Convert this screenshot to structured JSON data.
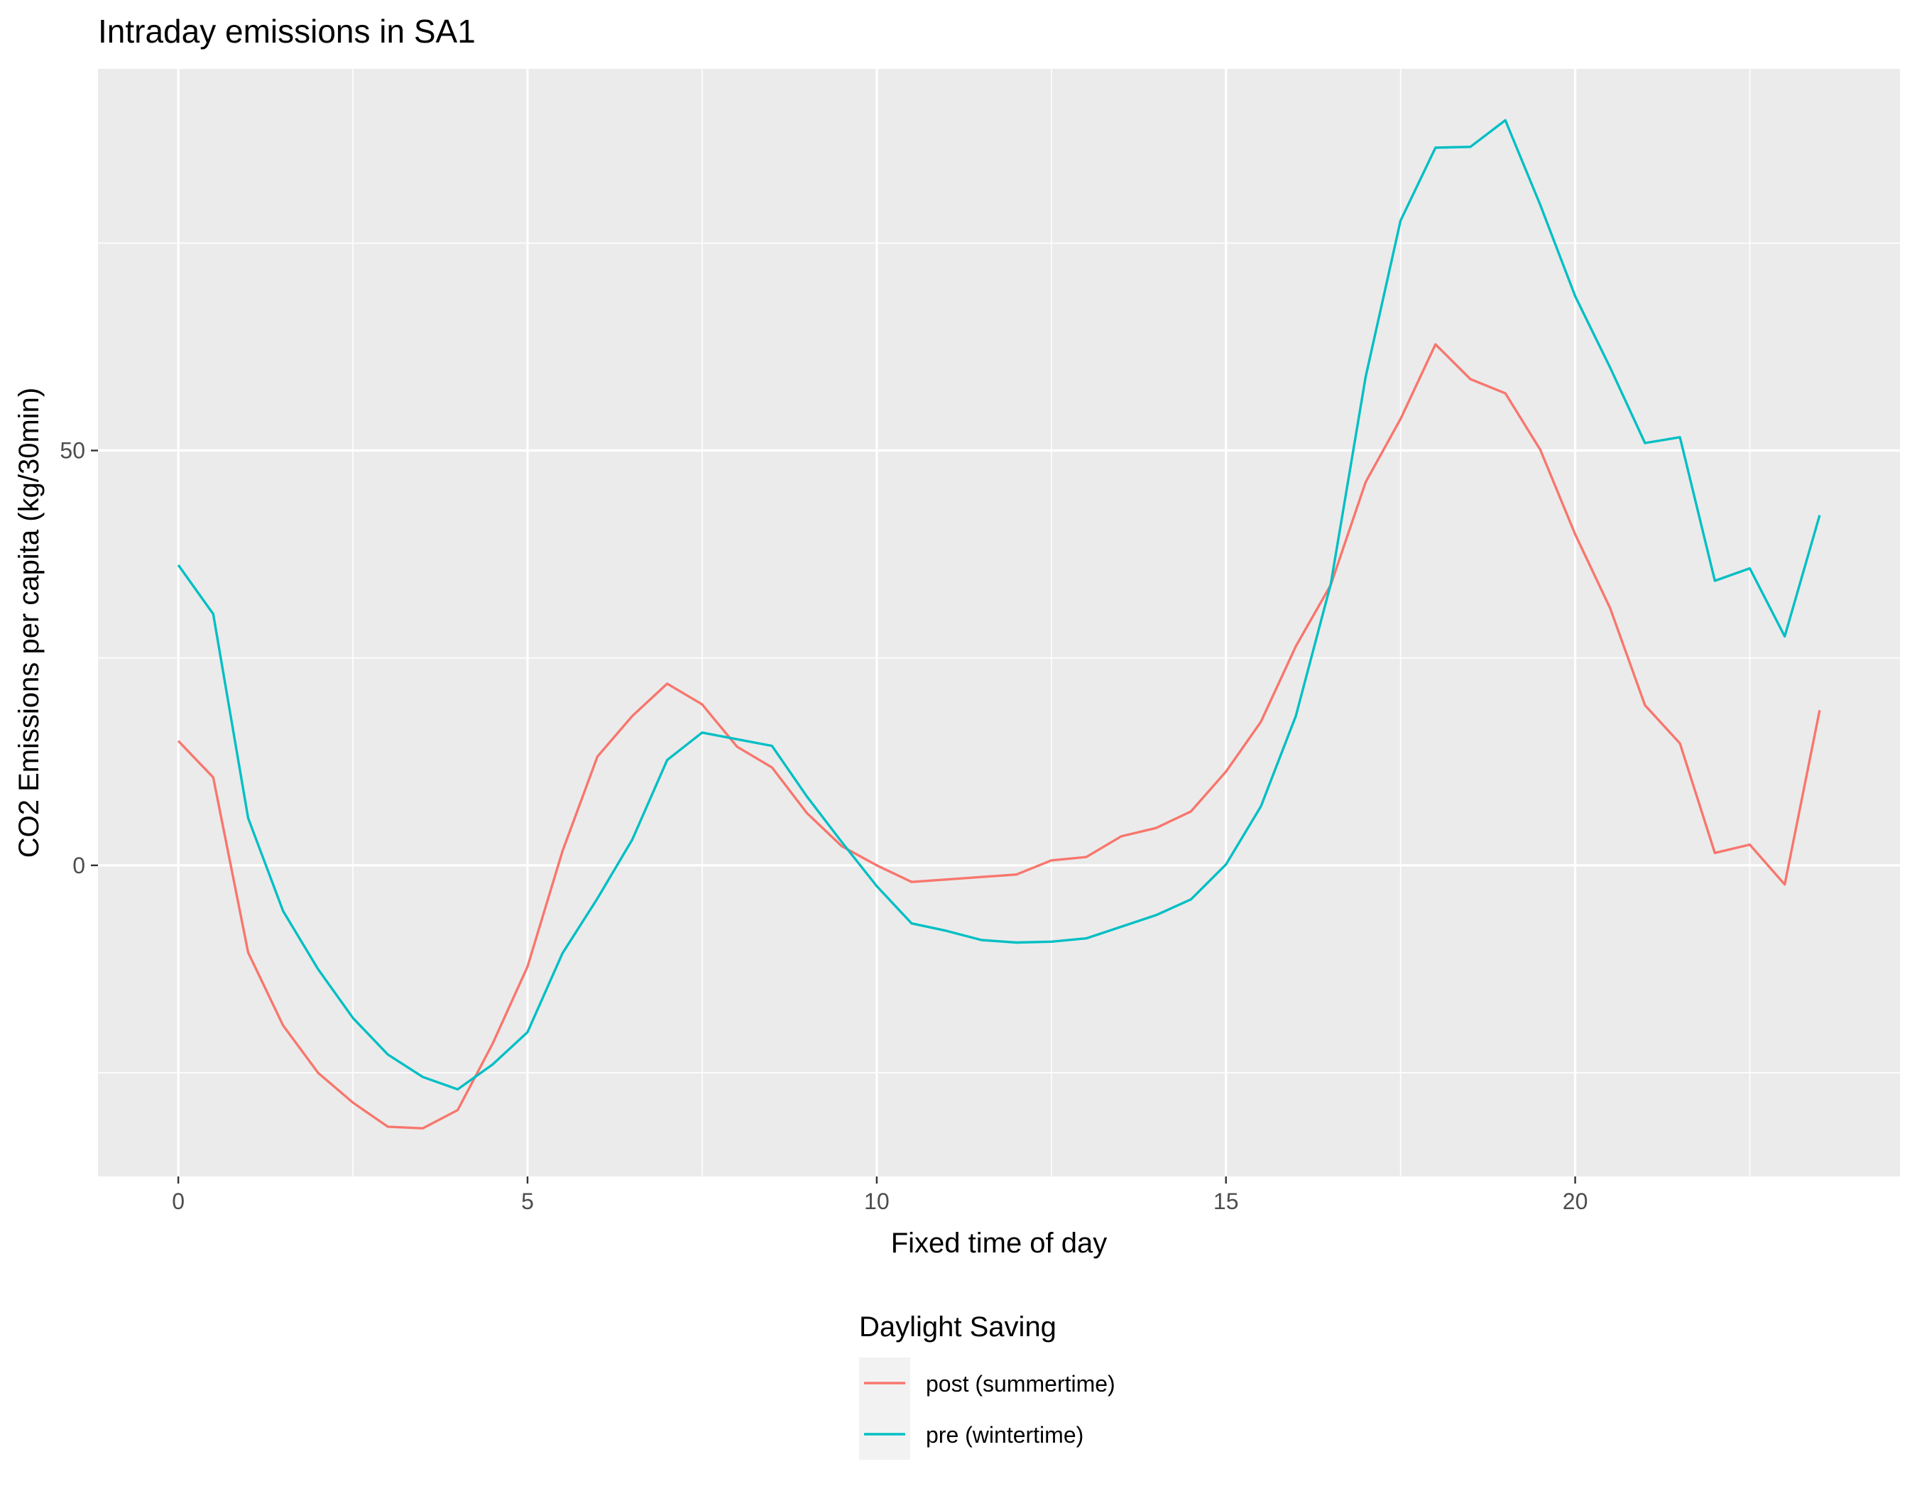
{
  "chart_data": {
    "type": "line",
    "title": "Intraday emissions in SA1",
    "xlabel": "Fixed time of day",
    "ylabel": "CO2 Emissions per capita (kg/30min)",
    "xlim": [
      -1.15,
      24.65
    ],
    "ylim": [
      -37.5,
      96
    ],
    "x_ticks": [
      0,
      5,
      10,
      15,
      20
    ],
    "y_ticks": [
      0,
      50
    ],
    "grid": true,
    "legend": {
      "title": "Daylight Saving",
      "position": "bottom"
    },
    "x": [
      0,
      0.5,
      1,
      1.5,
      2,
      2.5,
      3,
      3.5,
      4,
      4.5,
      5,
      5.5,
      6,
      6.5,
      7,
      7.5,
      8,
      8.5,
      9,
      9.5,
      10,
      10.5,
      11,
      11.5,
      12,
      12.5,
      13,
      13.5,
      14,
      14.5,
      15,
      15.5,
      16,
      16.5,
      17,
      17.5,
      18,
      18.5,
      19,
      19.5,
      20,
      20.5,
      21,
      21.5,
      22,
      22.5,
      23,
      23.5
    ],
    "series": [
      {
        "name": "post (summertime)",
        "color": "#F8766D",
        "values": [
          15,
          10.6,
          -10.5,
          -19.3,
          -25,
          -28.6,
          -31.5,
          -31.7,
          -29.5,
          -21.5,
          -12.2,
          1.7,
          13.1,
          18,
          21.9,
          19.4,
          14.3,
          11.8,
          6.3,
          2.3,
          0,
          -2,
          -1.7,
          -1.4,
          -1.1,
          0.6,
          1,
          3.5,
          4.5,
          6.5,
          11.3,
          17.3,
          26.4,
          33.8,
          46.2,
          53.8,
          62.8,
          58.6,
          56.9,
          50.1,
          39.9,
          31,
          19.3,
          14.7,
          1.5,
          2.5,
          -2.3,
          18.7
        ]
      },
      {
        "name": "pre (wintertime)",
        "color": "#00BFC4",
        "values": [
          36.2,
          30.3,
          5.7,
          -5.5,
          -12.5,
          -18.4,
          -22.8,
          -25.5,
          -27,
          -24,
          -20.1,
          -10.6,
          -4,
          3.1,
          12.7,
          16,
          15.2,
          14.4,
          8.3,
          2.8,
          -2.5,
          -7,
          -7.9,
          -9,
          -9.3,
          -9.2,
          -8.8,
          -7.4,
          -6,
          -4.1,
          0.1,
          7.1,
          18,
          33.9,
          58.9,
          77.7,
          86.5,
          86.6,
          89.8,
          79.6,
          68.6,
          60,
          50.9,
          51.6,
          34.3,
          35.8,
          27.6,
          42.2
        ]
      }
    ]
  }
}
